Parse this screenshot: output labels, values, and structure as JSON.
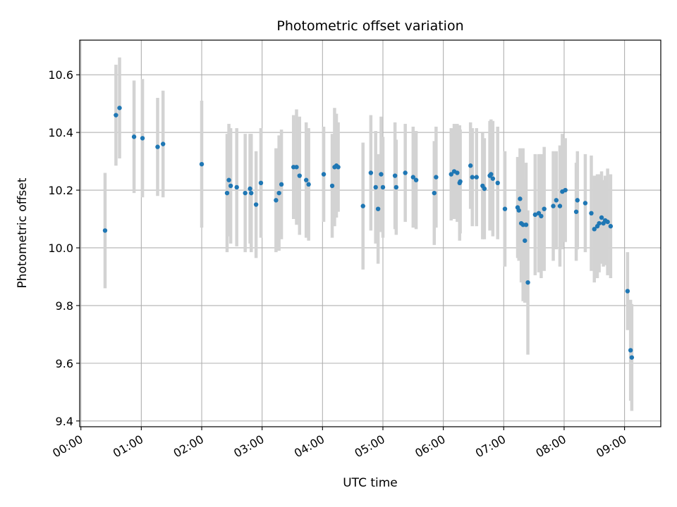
{
  "chart_data": {
    "type": "scatter",
    "title": "Photometric offset variation",
    "xlabel": "UTC time",
    "ylabel": "Photometric offset",
    "grid": true,
    "xlim": [
      -0.02,
      9.6
    ],
    "ylim": [
      9.38,
      10.72
    ],
    "x_unit": "hours",
    "x_ticks": [
      0,
      1,
      2,
      3,
      4,
      5,
      6,
      7,
      8,
      9
    ],
    "x_tick_labels": [
      "00:00",
      "01:00",
      "02:00",
      "03:00",
      "04:00",
      "05:00",
      "06:00",
      "07:00",
      "08:00",
      "09:00"
    ],
    "y_ticks": [
      9.4,
      9.6,
      9.8,
      10.0,
      10.2,
      10.4,
      10.6
    ],
    "y_tick_labels": [
      "9.4",
      "9.6",
      "9.8",
      "10.0",
      "10.2",
      "10.4",
      "10.6"
    ],
    "colors": {
      "point": "#1f77b4",
      "errorbar": "#d3d3d3",
      "grid": "#b0b0b0"
    },
    "series": [
      {
        "x": [
          0.4,
          0.58,
          0.64,
          0.88,
          1.02,
          1.27,
          1.36,
          2.0,
          2.42,
          2.45,
          2.48,
          2.58,
          2.72,
          2.8,
          2.82,
          2.9,
          2.98,
          3.23,
          3.28,
          3.32,
          3.52,
          3.57,
          3.62,
          3.73,
          3.77,
          4.02,
          4.16,
          4.2,
          4.23,
          4.26,
          4.67,
          4.8,
          4.88,
          4.92,
          4.97,
          5.0,
          5.2,
          5.22,
          5.37,
          5.5,
          5.55,
          5.85,
          5.88,
          6.13,
          6.18,
          6.23,
          6.27,
          6.28,
          6.45,
          6.48,
          6.55,
          6.65,
          6.68,
          6.77,
          6.79,
          6.82,
          6.9,
          7.02,
          7.23,
          7.25,
          7.27,
          7.29,
          7.32,
          7.35,
          7.37,
          7.4,
          7.52,
          7.58,
          7.62,
          7.67,
          7.82,
          7.87,
          7.93,
          7.97,
          8.02,
          8.2,
          8.22,
          8.35,
          8.45,
          8.5,
          8.55,
          8.58,
          8.62,
          8.65,
          8.68,
          8.72,
          8.77,
          9.05,
          9.1,
          9.12
        ],
        "y": [
          10.06,
          10.46,
          10.485,
          10.385,
          10.38,
          10.35,
          10.36,
          10.29,
          10.19,
          10.235,
          10.215,
          10.21,
          10.19,
          10.205,
          10.19,
          10.15,
          10.225,
          10.165,
          10.19,
          10.22,
          10.28,
          10.28,
          10.25,
          10.235,
          10.22,
          10.255,
          10.215,
          10.28,
          10.285,
          10.28,
          10.145,
          10.26,
          10.21,
          10.135,
          10.255,
          10.21,
          10.25,
          10.21,
          10.26,
          10.245,
          10.235,
          10.19,
          10.245,
          10.255,
          10.265,
          10.26,
          10.225,
          10.23,
          10.285,
          10.245,
          10.245,
          10.215,
          10.205,
          10.25,
          10.255,
          10.24,
          10.225,
          10.135,
          10.14,
          10.13,
          10.17,
          10.085,
          10.08,
          10.025,
          10.08,
          9.88,
          10.115,
          10.12,
          10.11,
          10.135,
          10.145,
          10.165,
          10.145,
          10.195,
          10.2,
          10.125,
          10.165,
          10.155,
          10.12,
          10.065,
          10.075,
          10.085,
          10.105,
          10.085,
          10.095,
          10.09,
          10.075,
          9.85,
          9.645,
          9.62
        ],
        "y_err": [
          0.2,
          0.175,
          0.175,
          0.195,
          0.205,
          0.17,
          0.185,
          0.22,
          0.205,
          0.195,
          0.2,
          0.205,
          0.205,
          0.19,
          0.205,
          0.185,
          0.19,
          0.18,
          0.2,
          0.19,
          0.18,
          0.2,
          0.205,
          0.2,
          0.195,
          0.165,
          0.18,
          0.205,
          0.18,
          0.155,
          0.22,
          0.2,
          0.195,
          0.19,
          0.2,
          0.175,
          0.185,
          0.165,
          0.17,
          0.175,
          0.17,
          0.18,
          0.175,
          0.16,
          0.165,
          0.17,
          0.2,
          0.18,
          0.15,
          0.17,
          0.17,
          0.185,
          0.175,
          0.19,
          0.19,
          0.2,
          0.195,
          0.2,
          0.175,
          0.175,
          0.175,
          0.205,
          0.265,
          0.215,
          0.215,
          0.25,
          0.21,
          0.205,
          0.215,
          0.215,
          0.19,
          0.17,
          0.21,
          0.2,
          0.18,
          0.17,
          0.17,
          0.17,
          0.2,
          0.185,
          0.18,
          0.17,
          0.16,
          0.15,
          0.155,
          0.185,
          0.18,
          0.135,
          0.175,
          0.185
        ]
      }
    ]
  }
}
